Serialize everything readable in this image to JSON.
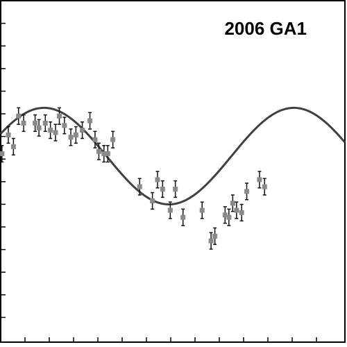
{
  "chart_data": {
    "type": "scatter",
    "title": "2006 GA1",
    "xlabel": "",
    "ylabel": "",
    "xlim": [
      0,
      1.35
    ],
    "ylim": [
      0,
      14.5
    ],
    "grid": false,
    "fit_curve": {
      "amplitude": 2.05,
      "offset": 7.9,
      "period": 0.98,
      "peak_x": 0.17
    },
    "marker_color": "#8a8a8a",
    "curve_color": "#404040",
    "points": [
      {
        "x": 0.005,
        "y": 8.0,
        "err": 0.35
      },
      {
        "x": 0.03,
        "y": 8.8,
        "err": 0.35
      },
      {
        "x": 0.05,
        "y": 8.3,
        "err": 0.35
      },
      {
        "x": 0.07,
        "y": 9.6,
        "err": 0.35
      },
      {
        "x": 0.09,
        "y": 9.3,
        "err": 0.35
      },
      {
        "x": 0.135,
        "y": 9.3,
        "err": 0.35
      },
      {
        "x": 0.15,
        "y": 9.1,
        "err": 0.35
      },
      {
        "x": 0.175,
        "y": 9.3,
        "err": 0.35
      },
      {
        "x": 0.195,
        "y": 9.0,
        "err": 0.35
      },
      {
        "x": 0.215,
        "y": 8.9,
        "err": 0.35
      },
      {
        "x": 0.23,
        "y": 9.6,
        "err": 0.35
      },
      {
        "x": 0.25,
        "y": 9.2,
        "err": 0.35
      },
      {
        "x": 0.275,
        "y": 8.7,
        "err": 0.35
      },
      {
        "x": 0.295,
        "y": 8.8,
        "err": 0.35
      },
      {
        "x": 0.32,
        "y": 9.0,
        "err": 0.35
      },
      {
        "x": 0.35,
        "y": 9.4,
        "err": 0.35
      },
      {
        "x": 0.37,
        "y": 8.6,
        "err": 0.35
      },
      {
        "x": 0.385,
        "y": 8.1,
        "err": 0.35
      },
      {
        "x": 0.405,
        "y": 8.0,
        "err": 0.35
      },
      {
        "x": 0.42,
        "y": 8.0,
        "err": 0.35
      },
      {
        "x": 0.44,
        "y": 8.6,
        "err": 0.35
      },
      {
        "x": 0.545,
        "y": 6.6,
        "err": 0.35
      },
      {
        "x": 0.595,
        "y": 6.0,
        "err": 0.35
      },
      {
        "x": 0.615,
        "y": 6.9,
        "err": 0.35
      },
      {
        "x": 0.635,
        "y": 6.5,
        "err": 0.35
      },
      {
        "x": 0.665,
        "y": 5.6,
        "err": 0.35
      },
      {
        "x": 0.685,
        "y": 6.5,
        "err": 0.35
      },
      {
        "x": 0.715,
        "y": 5.3,
        "err": 0.35
      },
      {
        "x": 0.79,
        "y": 5.6,
        "err": 0.35
      },
      {
        "x": 0.825,
        "y": 4.3,
        "err": 0.35
      },
      {
        "x": 0.84,
        "y": 4.5,
        "err": 0.35
      },
      {
        "x": 0.88,
        "y": 5.4,
        "err": 0.35
      },
      {
        "x": 0.895,
        "y": 5.3,
        "err": 0.35
      },
      {
        "x": 0.91,
        "y": 5.9,
        "err": 0.35
      },
      {
        "x": 0.925,
        "y": 5.6,
        "err": 0.35
      },
      {
        "x": 0.945,
        "y": 5.5,
        "err": 0.35
      },
      {
        "x": 0.965,
        "y": 6.4,
        "err": 0.35
      },
      {
        "x": 1.015,
        "y": 6.9,
        "err": 0.35
      },
      {
        "x": 1.035,
        "y": 6.6,
        "err": 0.35
      }
    ]
  }
}
